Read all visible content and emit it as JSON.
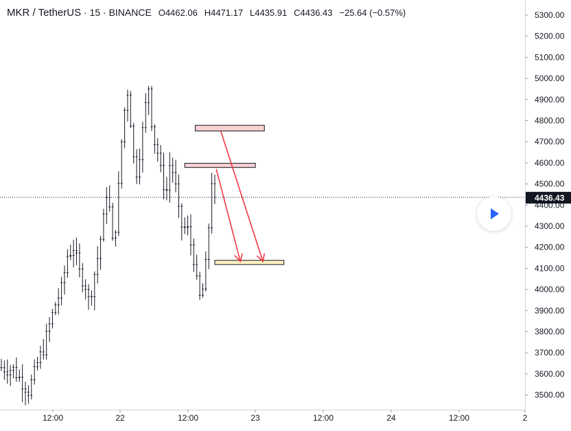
{
  "header": {
    "symbol": "MKR / TetherUS",
    "sep1": "·",
    "interval": "15",
    "sep2": "·",
    "exchange": "BINANCE",
    "open": "O4462.06",
    "high": "H4471.17",
    "low": "L4435.91",
    "close": "C4436.43",
    "change": "−25.64 (−0.57%)"
  },
  "price_badge": "4436.43",
  "colors": {
    "candle": "#131722",
    "axis_text": "#131722",
    "price_line": "#131722",
    "arrow": "#f23645",
    "zone_red_fill": "#f8d0d2",
    "zone_yellow_fill": "#fcefc0",
    "play": "#2962ff"
  },
  "icons": {
    "play": "play-icon"
  },
  "chart_data": {
    "type": "candlestick",
    "y_ticks": [
      "5300.00",
      "5200.00",
      "5100.00",
      "5000.00",
      "4900.00",
      "4800.00",
      "4700.00",
      "4600.00",
      "4500.00",
      "4400.00",
      "4300.00",
      "4200.00",
      "4100.00",
      "4000.00",
      "3900.00",
      "3800.00",
      "3700.00",
      "3600.00",
      "3500.00"
    ],
    "y_tick_values": [
      5300,
      5200,
      5100,
      5000,
      4900,
      4800,
      4700,
      4600,
      4500,
      4400,
      4300,
      4200,
      4100,
      4000,
      3900,
      3800,
      3700,
      3600,
      3500
    ],
    "x_ticks": [
      "12:00",
      "22",
      "12:00",
      "23",
      "12:00",
      "24",
      "12:00",
      "2"
    ],
    "ylim": [
      3420,
      5340
    ],
    "last_price": 4436.43,
    "price_path": [
      [
        0,
        3630
      ],
      [
        4,
        3620
      ],
      [
        7,
        3560
      ],
      [
        9,
        3520
      ],
      [
        11,
        3600
      ],
      [
        12,
        3650
      ],
      [
        14,
        3720
      ],
      [
        16,
        3830
      ],
      [
        18,
        3930
      ],
      [
        20,
        4000
      ],
      [
        22,
        4160
      ],
      [
        24,
        4200
      ],
      [
        26,
        4080
      ],
      [
        28,
        4020
      ],
      [
        29,
        3950
      ],
      [
        30,
        4000
      ],
      [
        32,
        4150
      ],
      [
        34,
        4330
      ],
      [
        35,
        4460
      ],
      [
        36,
        4380
      ],
      [
        37,
        4220
      ],
      [
        38,
        4300
      ],
      [
        39,
        4480
      ],
      [
        40,
        4700
      ],
      [
        41,
        4850
      ],
      [
        42,
        4940
      ],
      [
        43,
        4800
      ],
      [
        44,
        4620
      ],
      [
        45,
        4560
      ],
      [
        46,
        4650
      ],
      [
        47,
        4750
      ],
      [
        48,
        4870
      ],
      [
        49,
        4960
      ],
      [
        50,
        4800
      ],
      [
        51,
        4700
      ],
      [
        52,
        4650
      ],
      [
        53,
        4560
      ],
      [
        54,
        4500
      ],
      [
        55,
        4470
      ],
      [
        56,
        4590
      ],
      [
        57,
        4560
      ],
      [
        58,
        4480
      ],
      [
        59,
        4360
      ],
      [
        60,
        4300
      ],
      [
        62,
        4280
      ],
      [
        64,
        4150
      ],
      [
        65,
        4030
      ],
      [
        66,
        3960
      ],
      [
        67,
        4000
      ],
      [
        68,
        4110
      ],
      [
        69,
        4300
      ],
      [
        70,
        4520
      ],
      [
        71,
        4462
      ]
    ],
    "zones": [
      {
        "low": 4751,
        "high": 4778,
        "start": 64.5,
        "end": 87.5,
        "color": "red"
      },
      {
        "low": 4578,
        "high": 4598,
        "start": 61,
        "end": 84.5,
        "color": "red"
      },
      {
        "low": 4118,
        "high": 4138,
        "start": 71,
        "end": 94,
        "color": "yellow"
      }
    ],
    "arrows": [
      {
        "from": [
          71.5,
          4570
        ],
        "to": [
          79.5,
          4133
        ]
      },
      {
        "from": [
          73,
          4750
        ],
        "to": [
          87,
          4133
        ]
      }
    ]
  }
}
